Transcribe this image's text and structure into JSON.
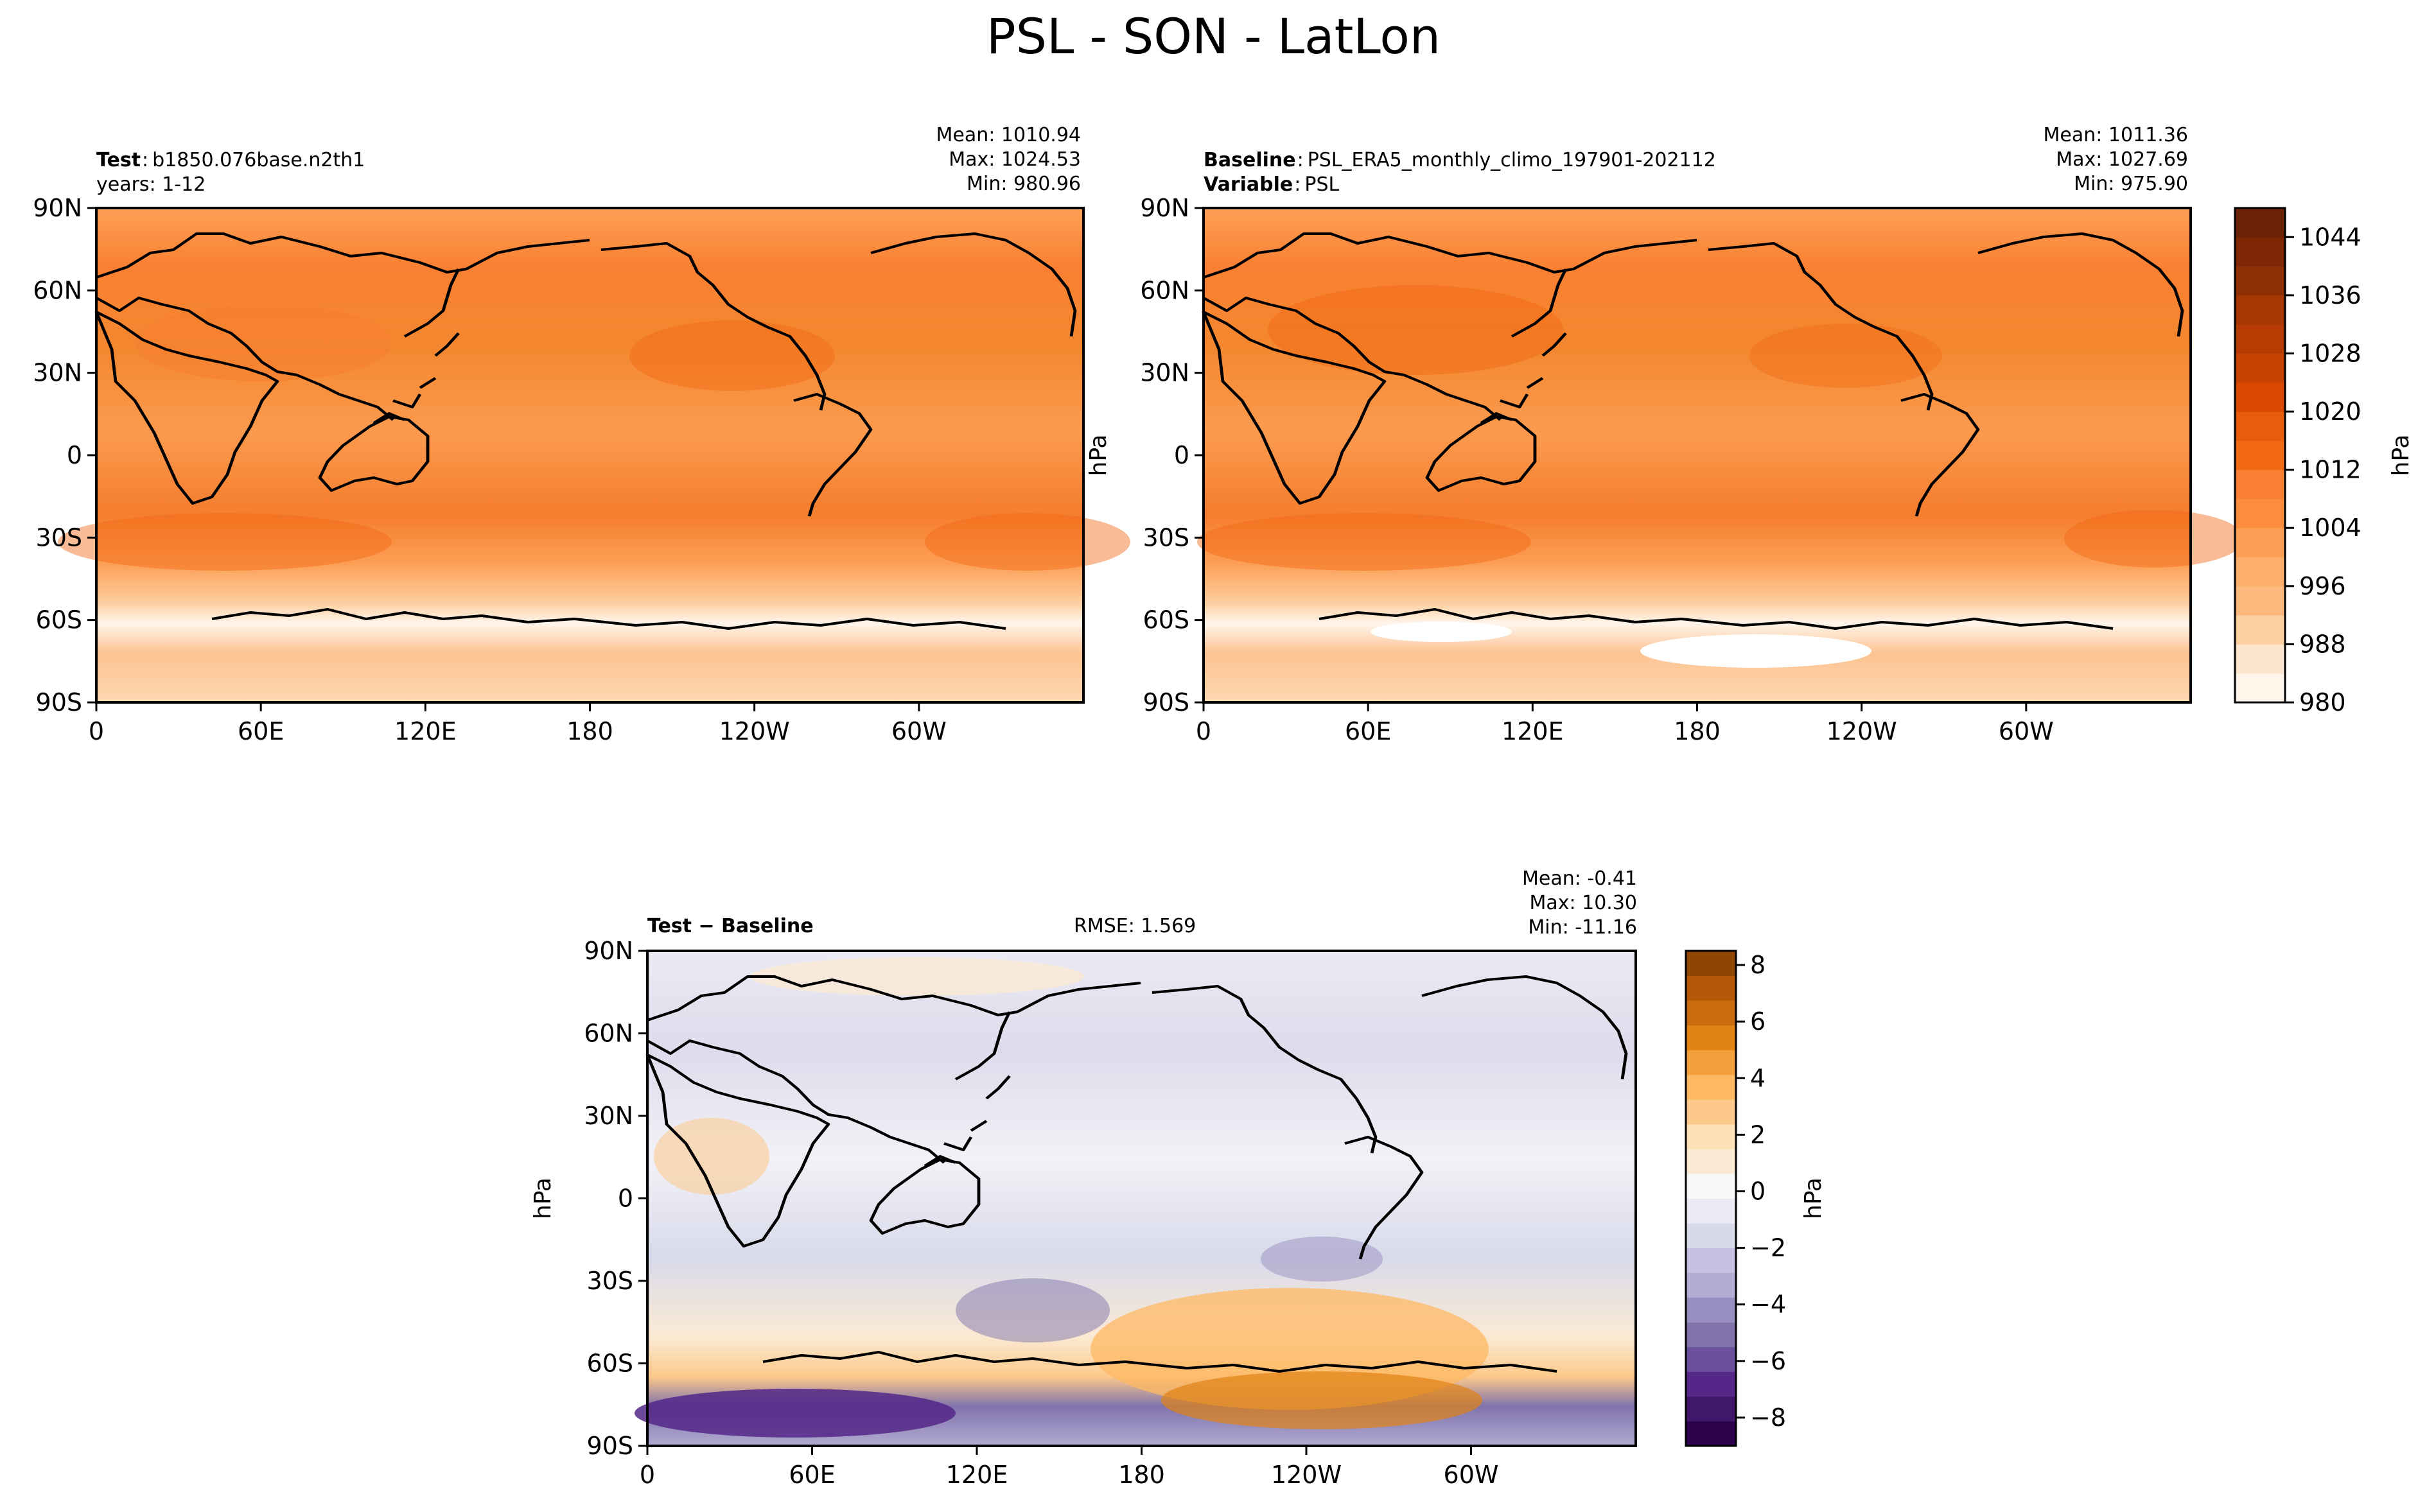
{
  "title": "PSL - SON - LatLon",
  "panels": [
    {
      "id": "test",
      "row1_label": "Test",
      "row1_value": "b1850.076base.n2th1",
      "row2_label": "",
      "row2_value": "years: 1-12",
      "stats": {
        "mean": "Mean: 1010.94",
        "max": "Max: 1024.53",
        "min": "Min: 980.96"
      }
    },
    {
      "id": "baseline",
      "row1_label": "Baseline",
      "row1_value": "PSL_ERA5_monthly_climo_197901-202112",
      "row2_label": "Variable",
      "row2_value": "PSL",
      "stats": {
        "mean": "Mean: 1011.36",
        "max": "Max: 1027.69",
        "min": "Min: 975.90"
      }
    },
    {
      "id": "diff",
      "row1_label": "Test − Baseline",
      "rmse": "RMSE: 1.569",
      "stats": {
        "mean": "Mean: -0.41",
        "max": "Max: 10.30",
        "min": "Min: -11.16"
      }
    }
  ],
  "units_label": "hPa",
  "chart_data": [
    {
      "type": "heatmap",
      "panel": "test",
      "title": "Test: b1850.076base.n2th1",
      "xlabel": "",
      "ylabel": "",
      "x_ticks": [
        "0",
        "60E",
        "120E",
        "180",
        "120W",
        "60W"
      ],
      "y_ticks": [
        "90N",
        "60N",
        "30N",
        "0",
        "30S",
        "60S",
        "90S"
      ],
      "xlim": [
        0,
        360
      ],
      "ylim": [
        -90,
        90
      ],
      "mean": 1010.94,
      "max": 1024.53,
      "min": 980.96
    },
    {
      "type": "heatmap",
      "panel": "baseline",
      "title": "Baseline: PSL_ERA5_monthly_climo_197901-202112",
      "xlabel": "",
      "ylabel": "hPa",
      "x_ticks": [
        "0",
        "60E",
        "120E",
        "180",
        "120W",
        "60W"
      ],
      "y_ticks": [
        "90N",
        "60N",
        "30N",
        "0",
        "30S",
        "60S",
        "90S"
      ],
      "xlim": [
        0,
        360
      ],
      "ylim": [
        -90,
        90
      ],
      "mean": 1011.36,
      "max": 1027.69,
      "min": 975.9
    },
    {
      "type": "heatmap",
      "panel": "diff",
      "title": "Test − Baseline",
      "xlabel": "",
      "ylabel": "hPa",
      "x_ticks": [
        "0",
        "60E",
        "120E",
        "180",
        "120W",
        "60W"
      ],
      "y_ticks": [
        "90N",
        "60N",
        "30N",
        "0",
        "30S",
        "60S",
        "90S"
      ],
      "xlim": [
        0,
        360
      ],
      "ylim": [
        -90,
        90
      ],
      "mean": -0.41,
      "max": 10.3,
      "min": -11.16,
      "rmse": 1.569
    }
  ],
  "colorbars": {
    "main": {
      "label": "hPa",
      "range": [
        980,
        1048
      ],
      "ticks": [
        980,
        988,
        996,
        1004,
        1012,
        1020,
        1028,
        1036,
        1044
      ],
      "colors": [
        "#fff5eb",
        "#fee6ce",
        "#fdd0a2",
        "#fdb97d",
        "#fdae6b",
        "#fd9f55",
        "#fd8d3c",
        "#f98032",
        "#f16913",
        "#e85d0c",
        "#d94801",
        "#c84303",
        "#b63c03",
        "#a63603",
        "#8f2f04",
        "#7f2704",
        "#6a2104"
      ]
    },
    "diff": {
      "label": "hPa",
      "range": [
        -9,
        8.5
      ],
      "ticks": [
        -8,
        -6,
        -4,
        -2,
        0,
        2,
        4,
        6,
        8
      ],
      "tick_labels": [
        "−8",
        "−6",
        "−4",
        "−2",
        "0",
        "2",
        "4",
        "6",
        "8"
      ],
      "colors": [
        "#2d004b",
        "#40176a",
        "#542788",
        "#6a4f9b",
        "#8073ac",
        "#988fc0",
        "#b2abd2",
        "#c6c1e0",
        "#d8daeb",
        "#ebeaf3",
        "#f7f7f7",
        "#fbead3",
        "#fee0b6",
        "#fdc98a",
        "#fdb863",
        "#f3a03c",
        "#e08214",
        "#c86c0e",
        "#b35806",
        "#8f4506"
      ]
    }
  }
}
